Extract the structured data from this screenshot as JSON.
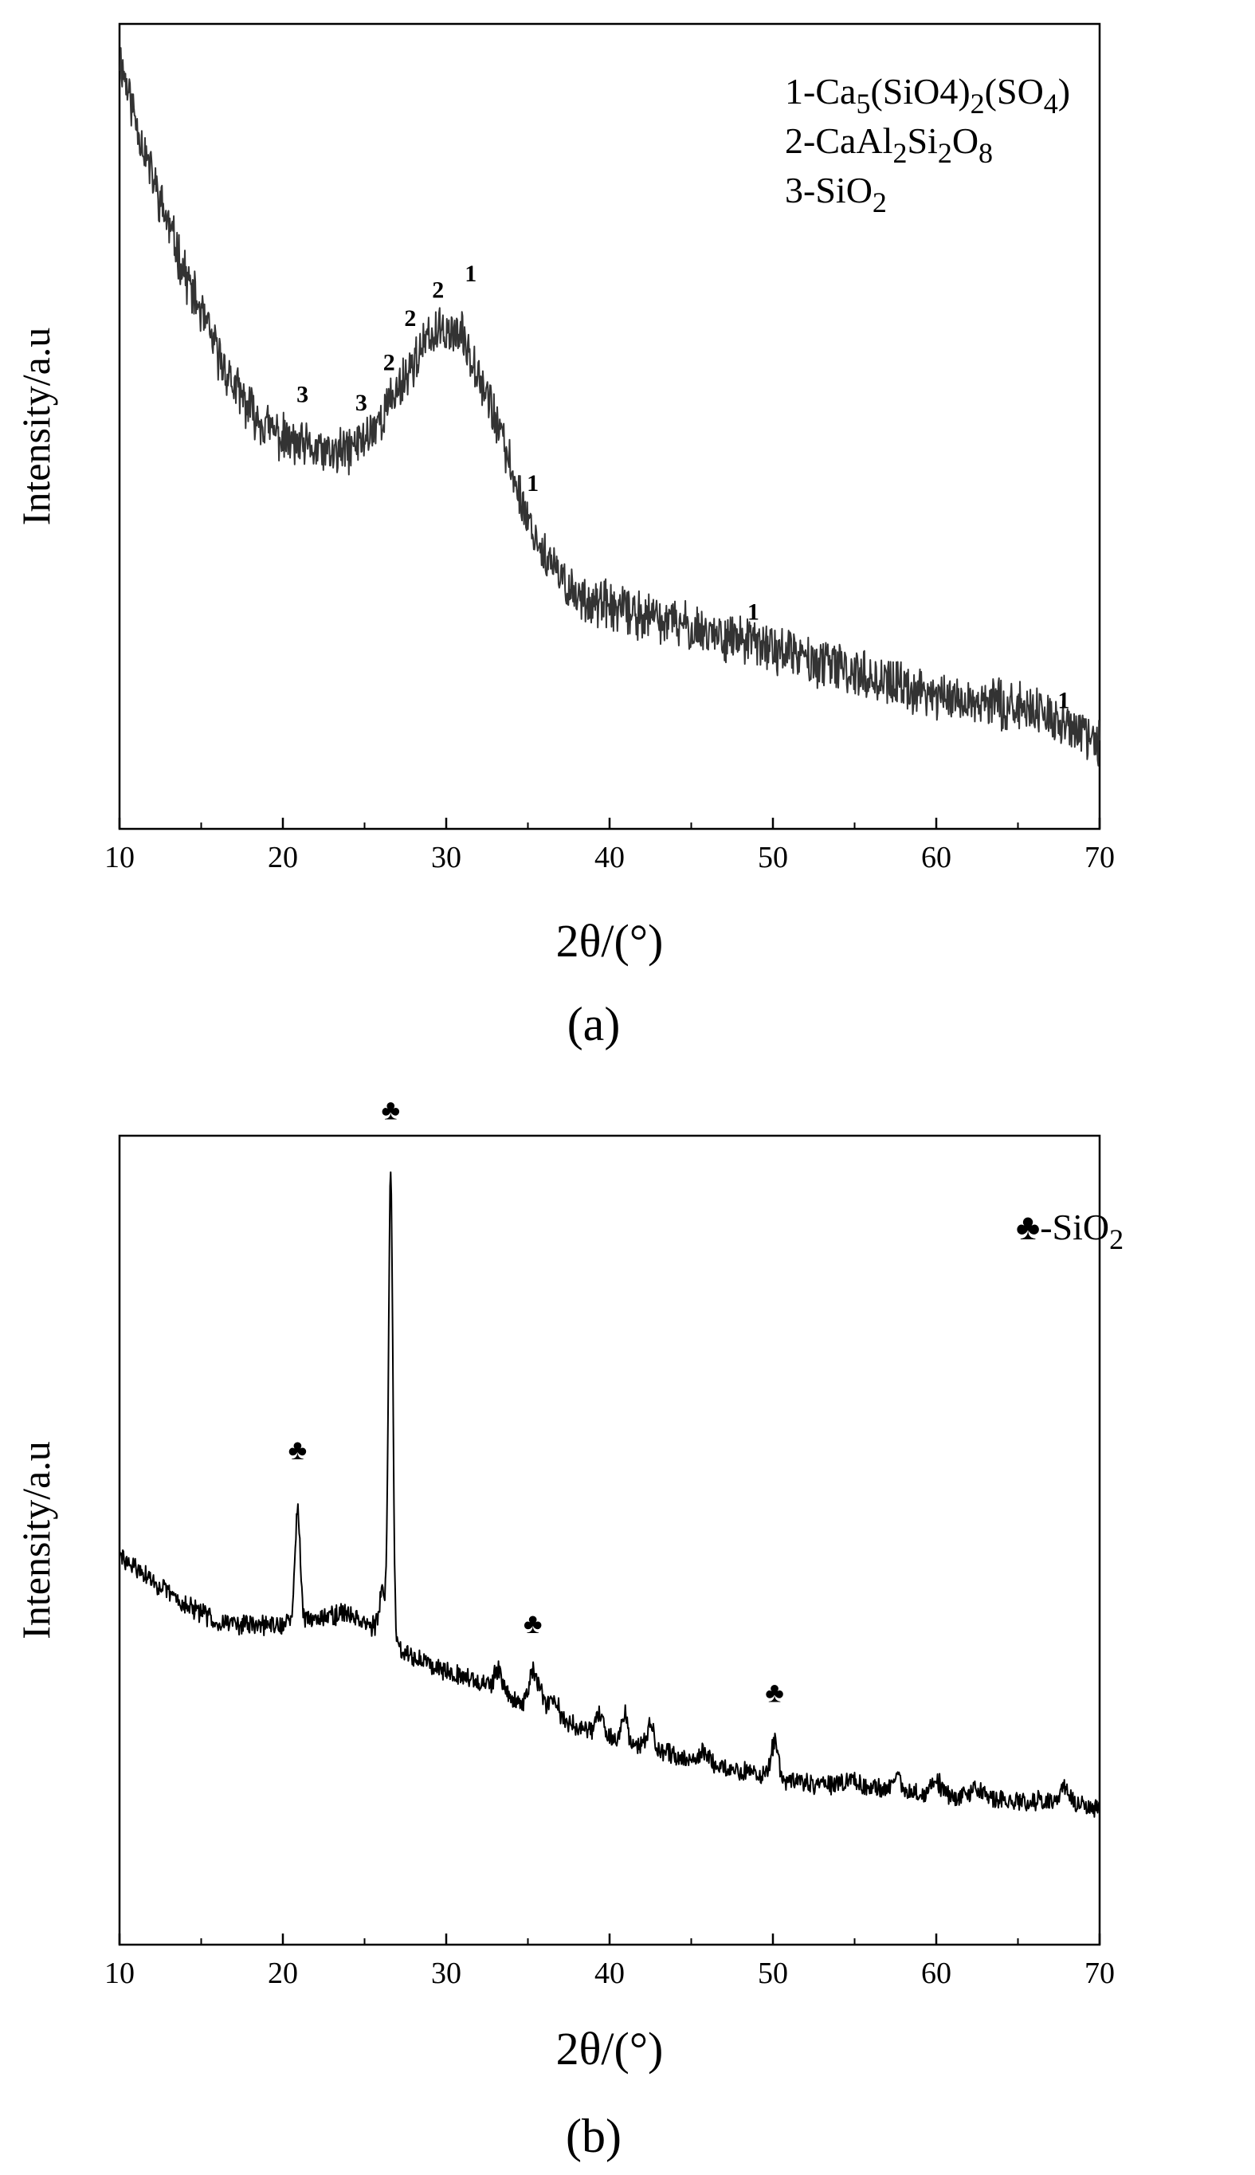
{
  "chart_data": [
    {
      "type": "line",
      "panel_label": "(a)",
      "xlabel": "2θ/(°)",
      "ylabel": "Intensity/a.u",
      "xlim": [
        10,
        70
      ],
      "x_ticks": [
        "10",
        "20",
        "30",
        "40",
        "50",
        "60",
        "70"
      ],
      "y_ticks": [],
      "grid": false,
      "legend_position": "top-right",
      "legend": [
        {
          "prefix": "1-",
          "parts": [
            [
              "Ca",
              ""
            ],
            [
              "5",
              "sub"
            ],
            [
              "(SiO4)",
              ""
            ],
            [
              "2",
              "sub"
            ],
            [
              "(SO",
              ""
            ],
            [
              "4",
              "sub"
            ],
            [
              ")",
              ""
            ]
          ]
        },
        {
          "prefix": "2-",
          "parts": [
            [
              "CaAl",
              ""
            ],
            [
              "2",
              "sub"
            ],
            [
              "Si",
              ""
            ],
            [
              "2",
              "sub"
            ],
            [
              "O",
              ""
            ],
            [
              "8",
              "sub"
            ]
          ]
        },
        {
          "prefix": "3-",
          "parts": [
            [
              "SiO",
              ""
            ],
            [
              "2",
              "sub"
            ]
          ]
        }
      ],
      "ylim": [
        0,
        100
      ],
      "series": [
        {
          "color": "#333333",
          "noise": 2.6,
          "baseline": [
            [
              10,
              96
            ],
            [
              11,
              88
            ],
            [
              12,
              81
            ],
            [
              13,
              75
            ],
            [
              14,
              69
            ],
            [
              15,
              64
            ],
            [
              16,
              59
            ],
            [
              17,
              55
            ],
            [
              18,
              52
            ],
            [
              19,
              50
            ],
            [
              20,
              48.5
            ],
            [
              21,
              47.5
            ],
            [
              22,
              47
            ],
            [
              23,
              46.5
            ],
            [
              24,
              47
            ],
            [
              25,
              48.5
            ],
            [
              26,
              51
            ],
            [
              27,
              54.5
            ],
            [
              28,
              58
            ],
            [
              29,
              61
            ],
            [
              30,
              62
            ],
            [
              31,
              61
            ],
            [
              32,
              57
            ],
            [
              33,
              51
            ],
            [
              34,
              44.5
            ],
            [
              35,
              38.5
            ],
            [
              36,
              34
            ],
            [
              37,
              31
            ],
            [
              38,
              29
            ],
            [
              40,
              27.5
            ],
            [
              42,
              26.5
            ],
            [
              45,
              25
            ],
            [
              48,
              23.5
            ],
            [
              50,
              22.5
            ],
            [
              53,
              20.5
            ],
            [
              55,
              19.5
            ],
            [
              58,
              17.5
            ],
            [
              60,
              16.5
            ],
            [
              62,
              15.8
            ],
            [
              64,
              15.5
            ],
            [
              66,
              14.8
            ],
            [
              68,
              12.8
            ],
            [
              70,
              10.5
            ]
          ]
        }
      ],
      "peaks": [
        {
          "x": 21.2,
          "y": 53,
          "label": "3"
        },
        {
          "x": 24.8,
          "y": 52,
          "label": "3"
        },
        {
          "x": 26.5,
          "y": 57,
          "label": "2"
        },
        {
          "x": 27.8,
          "y": 62.5,
          "label": "2"
        },
        {
          "x": 29.5,
          "y": 66,
          "label": "2"
        },
        {
          "x": 31.5,
          "y": 68,
          "label": "1"
        },
        {
          "x": 35.3,
          "y": 42,
          "label": "1"
        },
        {
          "x": 48.8,
          "y": 26,
          "label": "1"
        },
        {
          "x": 67.8,
          "y": 15,
          "label": "1"
        }
      ]
    },
    {
      "type": "line",
      "panel_label": "(b)",
      "xlabel": "2θ/(°)",
      "ylabel": "Intensity/a.u",
      "xlim": [
        10,
        70
      ],
      "x_ticks": [
        "10",
        "20",
        "30",
        "40",
        "50",
        "60",
        "70"
      ],
      "y_ticks": [],
      "grid": false,
      "legend_position": "top-right",
      "legend": [
        {
          "prefix": "♣-",
          "parts": [
            [
              "SiO",
              ""
            ],
            [
              "2",
              "sub"
            ]
          ]
        }
      ],
      "ylim": [
        0,
        100
      ],
      "series": [
        {
          "color": "#000000",
          "noise": 1.1,
          "baseline": [
            [
              10,
              48
            ],
            [
              12,
              45
            ],
            [
              14,
              42
            ],
            [
              16,
              40
            ],
            [
              18,
              39.5
            ],
            [
              20,
              39.5
            ],
            [
              22,
              40.5
            ],
            [
              24,
              41
            ],
            [
              25,
              40
            ],
            [
              26,
              38.5
            ],
            [
              27,
              37
            ],
            [
              28,
              35.5
            ],
            [
              30,
              34
            ],
            [
              32,
              32.5
            ],
            [
              34,
              30.5
            ],
            [
              36,
              28.5
            ],
            [
              38,
              27
            ],
            [
              40,
              25.5
            ],
            [
              42,
              24.5
            ],
            [
              45,
              22.8
            ],
            [
              48,
              21.5
            ],
            [
              50,
              20.5
            ],
            [
              52,
              20
            ],
            [
              55,
              19.5
            ],
            [
              58,
              19
            ],
            [
              60,
              18.5
            ],
            [
              62,
              18.2
            ],
            [
              65,
              17.8
            ],
            [
              68,
              17.5
            ],
            [
              70,
              17
            ]
          ],
          "peaks": [
            [
              20.9,
              14.5,
              0.15
            ],
            [
              26.1,
              5,
              0.2
            ],
            [
              26.6,
              58,
              0.13
            ],
            [
              33.2,
              2.5,
              0.25
            ],
            [
              35.3,
              4.5,
              0.22
            ],
            [
              35.8,
              2.5,
              0.2
            ],
            [
              36.6,
              2.5,
              0.25
            ],
            [
              39.4,
              2.5,
              0.2
            ],
            [
              40.9,
              3.5,
              0.2
            ],
            [
              42.5,
              3,
              0.22
            ],
            [
              45.8,
              1.2,
              0.3
            ],
            [
              50.1,
              4.5,
              0.22
            ],
            [
              54.8,
              1,
              0.3
            ],
            [
              57.6,
              1.5,
              0.25
            ],
            [
              60,
              1.8,
              0.3
            ],
            [
              62.5,
              1.2,
              0.3
            ],
            [
              67.9,
              2.2,
              0.25
            ]
          ]
        }
      ],
      "peaks": [
        {
          "x": 20.9,
          "y": 60,
          "label": "♣"
        },
        {
          "x": 26.6,
          "y": 102,
          "label": "♣"
        },
        {
          "x": 35.3,
          "y": 38.5,
          "label": "♣"
        },
        {
          "x": 50.1,
          "y": 30,
          "label": "♣"
        }
      ]
    }
  ]
}
